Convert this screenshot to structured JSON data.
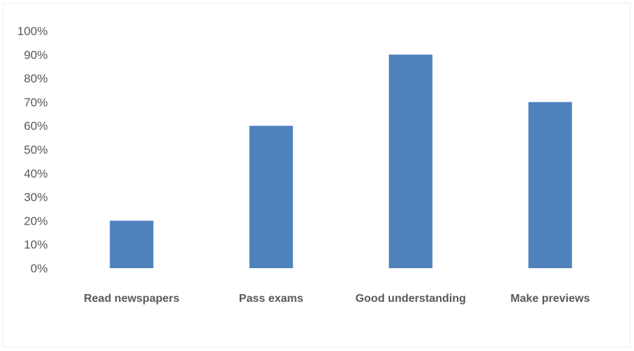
{
  "chart_data": {
    "type": "bar",
    "title": "",
    "xlabel": "",
    "ylabel": "",
    "categories": [
      "Read newspapers",
      "Pass exams",
      "Good understanding",
      "Make previews"
    ],
    "values": [
      20,
      60,
      90,
      70
    ],
    "ylim": [
      0,
      100
    ],
    "yticks": [
      "0%",
      "10%",
      "20%",
      "30%",
      "40%",
      "50%",
      "60%",
      "70%",
      "80%",
      "90%",
      "100%"
    ],
    "grid": false,
    "legend": "none",
    "bar_color": "#4f81bd"
  }
}
